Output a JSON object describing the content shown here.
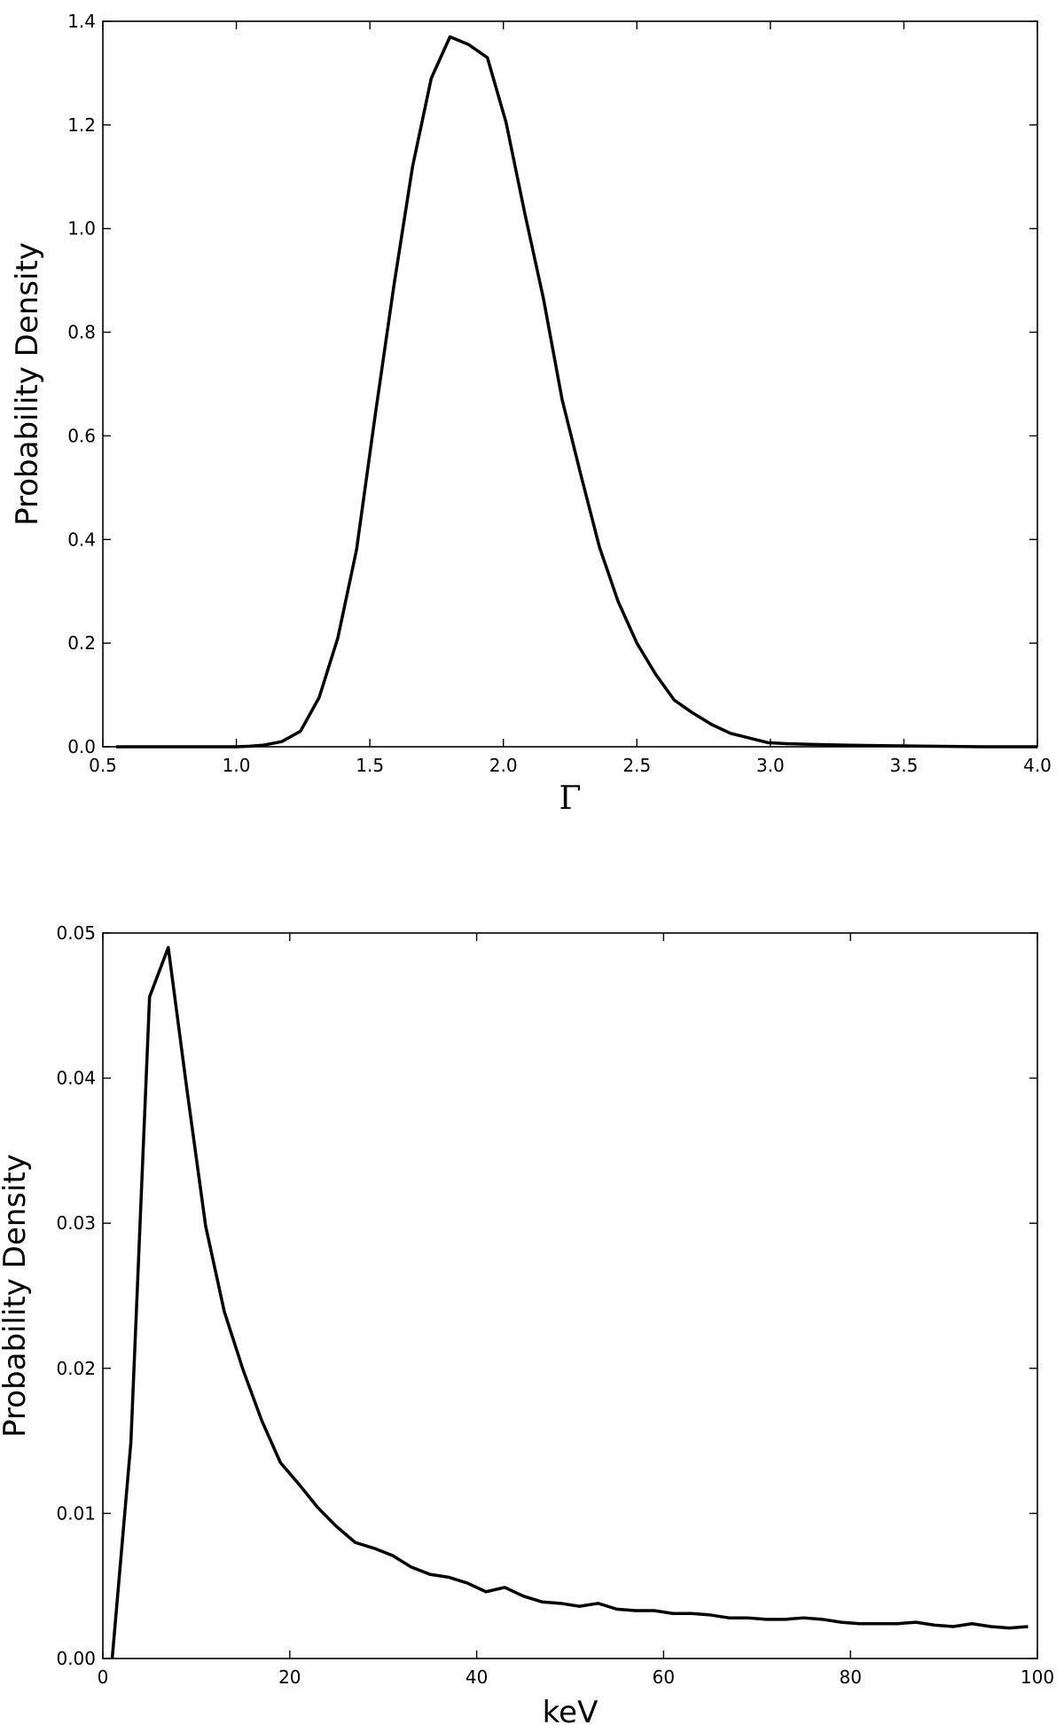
{
  "chart_data": [
    {
      "type": "line",
      "xlabel": "Γ",
      "ylabel": "Probability Density",
      "xlim": [
        0.5,
        4.0
      ],
      "ylim": [
        0.0,
        1.4
      ],
      "xticks": [
        0.5,
        1.0,
        1.5,
        2.0,
        2.5,
        3.0,
        3.5,
        4.0
      ],
      "xtick_labels": [
        "0.5",
        "1.0",
        "1.5",
        "2.0",
        "2.5",
        "3.0",
        "3.5",
        "4.0"
      ],
      "yticks": [
        0.0,
        0.2,
        0.4,
        0.6,
        0.8,
        1.0,
        1.2,
        1.4
      ],
      "ytick_labels": [
        "0.0",
        "0.2",
        "0.4",
        "0.6",
        "0.8",
        "1.0",
        "1.2",
        "1.4"
      ],
      "grid": false,
      "series": [
        {
          "x": [
            0.55,
            0.7,
            0.85,
            1.0,
            1.05,
            1.1,
            1.17,
            1.24,
            1.31,
            1.38,
            1.45,
            1.52,
            1.59,
            1.66,
            1.73,
            1.8,
            1.87,
            1.94,
            2.01,
            2.08,
            2.15,
            2.22,
            2.29,
            2.36,
            2.43,
            2.5,
            2.57,
            2.64,
            2.71,
            2.78,
            2.85,
            2.92,
            2.99,
            3.06,
            3.13,
            3.2,
            3.3,
            3.45,
            3.6,
            3.8,
            4.0
          ],
          "y": [
            0.0,
            0.0,
            0.0,
            0.0,
            0.001,
            0.003,
            0.01,
            0.03,
            0.095,
            0.21,
            0.38,
            0.64,
            0.89,
            1.12,
            1.29,
            1.37,
            1.355,
            1.33,
            1.205,
            1.03,
            0.865,
            0.67,
            0.525,
            0.385,
            0.28,
            0.2,
            0.14,
            0.09,
            0.065,
            0.043,
            0.026,
            0.017,
            0.008,
            0.006,
            0.005,
            0.004,
            0.003,
            0.002,
            0.001,
            0.0,
            0.0
          ]
        }
      ]
    },
    {
      "type": "line",
      "xlabel": "keV",
      "ylabel": "Probability Density",
      "xlim": [
        0,
        100
      ],
      "ylim": [
        0.0,
        0.05
      ],
      "xticks": [
        0,
        20,
        40,
        60,
        80,
        100
      ],
      "xtick_labels": [
        "0",
        "20",
        "40",
        "60",
        "80",
        "100"
      ],
      "yticks": [
        0.0,
        0.01,
        0.02,
        0.03,
        0.04,
        0.05
      ],
      "ytick_labels": [
        "0.00",
        "0.01",
        "0.02",
        "0.03",
        "0.04",
        "0.05"
      ],
      "grid": false,
      "series": [
        {
          "x": [
            1,
            3,
            5,
            7,
            9,
            11,
            13,
            15,
            17,
            19,
            21,
            23,
            25,
            27,
            29,
            31,
            33,
            35,
            37,
            39,
            41,
            43,
            45,
            47,
            49,
            51,
            53,
            55,
            57,
            59,
            61,
            63,
            65,
            67,
            69,
            71,
            73,
            75,
            77,
            79,
            81,
            83,
            85,
            87,
            89,
            91,
            93,
            95,
            97,
            99
          ],
          "y": [
            0.0,
            0.0149,
            0.0456,
            0.049,
            0.0392,
            0.0298,
            0.0239,
            0.0199,
            0.0164,
            0.0135,
            0.012,
            0.0104,
            0.0091,
            0.008,
            0.0076,
            0.0071,
            0.0063,
            0.0058,
            0.0056,
            0.0052,
            0.0046,
            0.0049,
            0.0043,
            0.0039,
            0.0038,
            0.0036,
            0.0038,
            0.0034,
            0.0033,
            0.0033,
            0.0031,
            0.0031,
            0.003,
            0.0028,
            0.0028,
            0.0027,
            0.0027,
            0.0028,
            0.0027,
            0.0025,
            0.0024,
            0.0024,
            0.0024,
            0.0025,
            0.0023,
            0.0022,
            0.0024,
            0.0022,
            0.0021,
            0.0022
          ]
        }
      ]
    }
  ]
}
